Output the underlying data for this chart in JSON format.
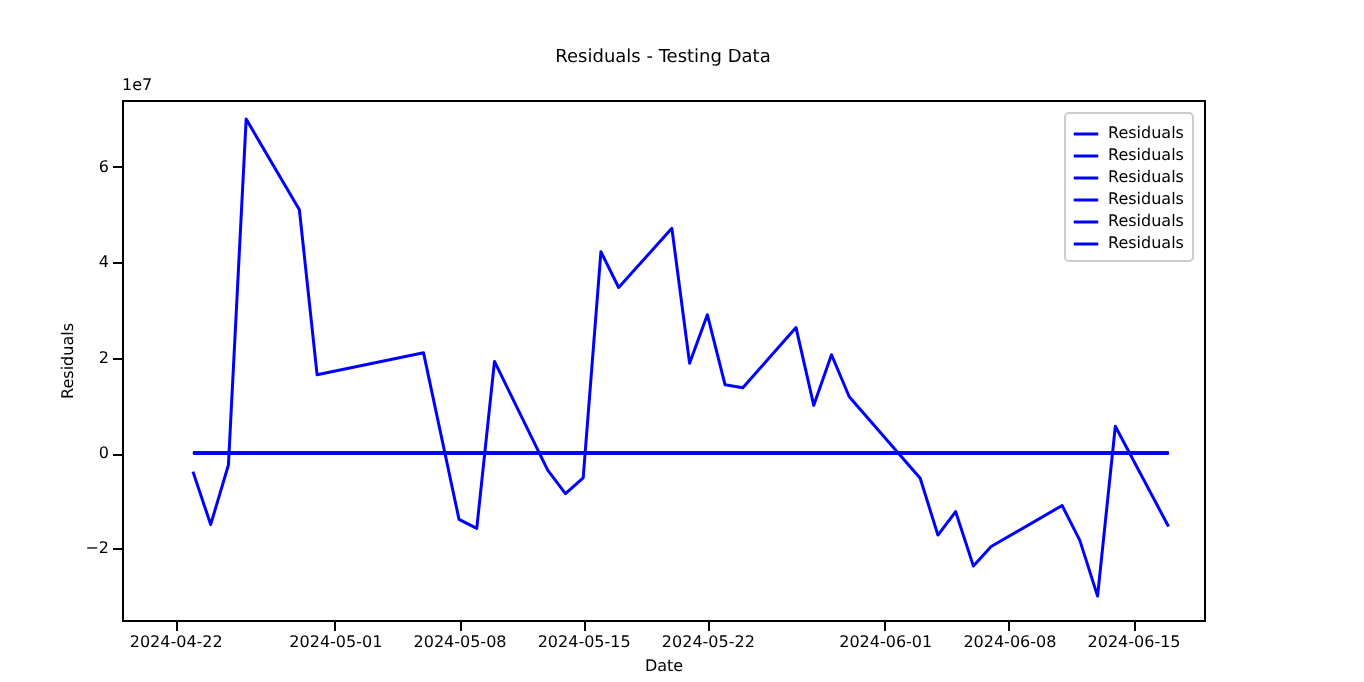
{
  "chart_data": {
    "type": "line",
    "title": "Residuals - Testing Data",
    "xlabel": "Date",
    "ylabel": "Residuals",
    "annotations": [
      "1e7"
    ],
    "xlim": [
      "2024-04-19",
      "2024-06-19"
    ],
    "xticks": [
      "2024-04-22",
      "2024-05-01",
      "2024-05-08",
      "2024-05-15",
      "2024-05-22",
      "2024-06-01",
      "2024-06-08",
      "2024-06-15"
    ],
    "ylim": [
      -3.5,
      7.4
    ],
    "yticks": [
      {
        "value": -2,
        "label": "−2"
      },
      0,
      2,
      4,
      6
    ],
    "grid": false,
    "legend": "top right",
    "marker": "none",
    "line_style": "solid",
    "series": [
      {
        "name": "Residuals",
        "color": "#0000ff",
        "x": [
          "2024-04-23",
          "2024-04-24",
          "2024-04-25",
          "2024-04-26",
          "2024-04-29",
          "2024-04-30",
          "2024-05-06",
          "2024-05-08",
          "2024-05-09",
          "2024-05-10",
          "2024-05-13",
          "2024-05-14",
          "2024-05-15",
          "2024-05-16",
          "2024-05-17",
          "2024-05-20",
          "2024-05-21",
          "2024-05-22",
          "2024-05-23",
          "2024-05-24",
          "2024-05-27",
          "2024-05-28",
          "2024-05-29",
          "2024-05-30",
          "2024-06-03",
          "2024-06-04",
          "2024-06-05",
          "2024-06-06",
          "2024-06-07",
          "2024-06-11",
          "2024-06-12",
          "2024-06-13",
          "2024-06-14",
          "2024-06-17"
        ],
        "values": [
          -0.39,
          -1.5,
          -0.25,
          7.0,
          5.1,
          1.64,
          2.1,
          -1.39,
          -1.58,
          1.92,
          -0.36,
          -0.85,
          -0.52,
          4.22,
          3.47,
          4.71,
          1.88,
          2.9,
          1.43,
          1.37,
          2.63,
          1.0,
          2.06,
          1.18,
          -0.53,
          -1.72,
          -1.23,
          -2.37,
          -1.96,
          -1.1,
          -1.83,
          -3.0,
          0.56,
          -1.54
        ]
      },
      {
        "name": "Residuals",
        "color": "#0000ff",
        "x": [
          "2024-04-23",
          "2024-06-17"
        ],
        "values": [
          0,
          0
        ]
      },
      {
        "name": "Residuals",
        "color": "#0000ff",
        "x": [
          "2024-04-23",
          "2024-06-17"
        ],
        "values": [
          0,
          0
        ]
      },
      {
        "name": "Residuals",
        "color": "#0000ff",
        "x": [
          "2024-04-23",
          "2024-06-17"
        ],
        "values": [
          0,
          0
        ]
      },
      {
        "name": "Residuals",
        "color": "#0000ff",
        "x": [
          "2024-04-23",
          "2024-06-17"
        ],
        "values": [
          0,
          0
        ]
      },
      {
        "name": "Residuals",
        "color": "#0000ff",
        "x": [
          "2024-04-23",
          "2024-06-17"
        ],
        "values": [
          0,
          0
        ]
      }
    ]
  }
}
